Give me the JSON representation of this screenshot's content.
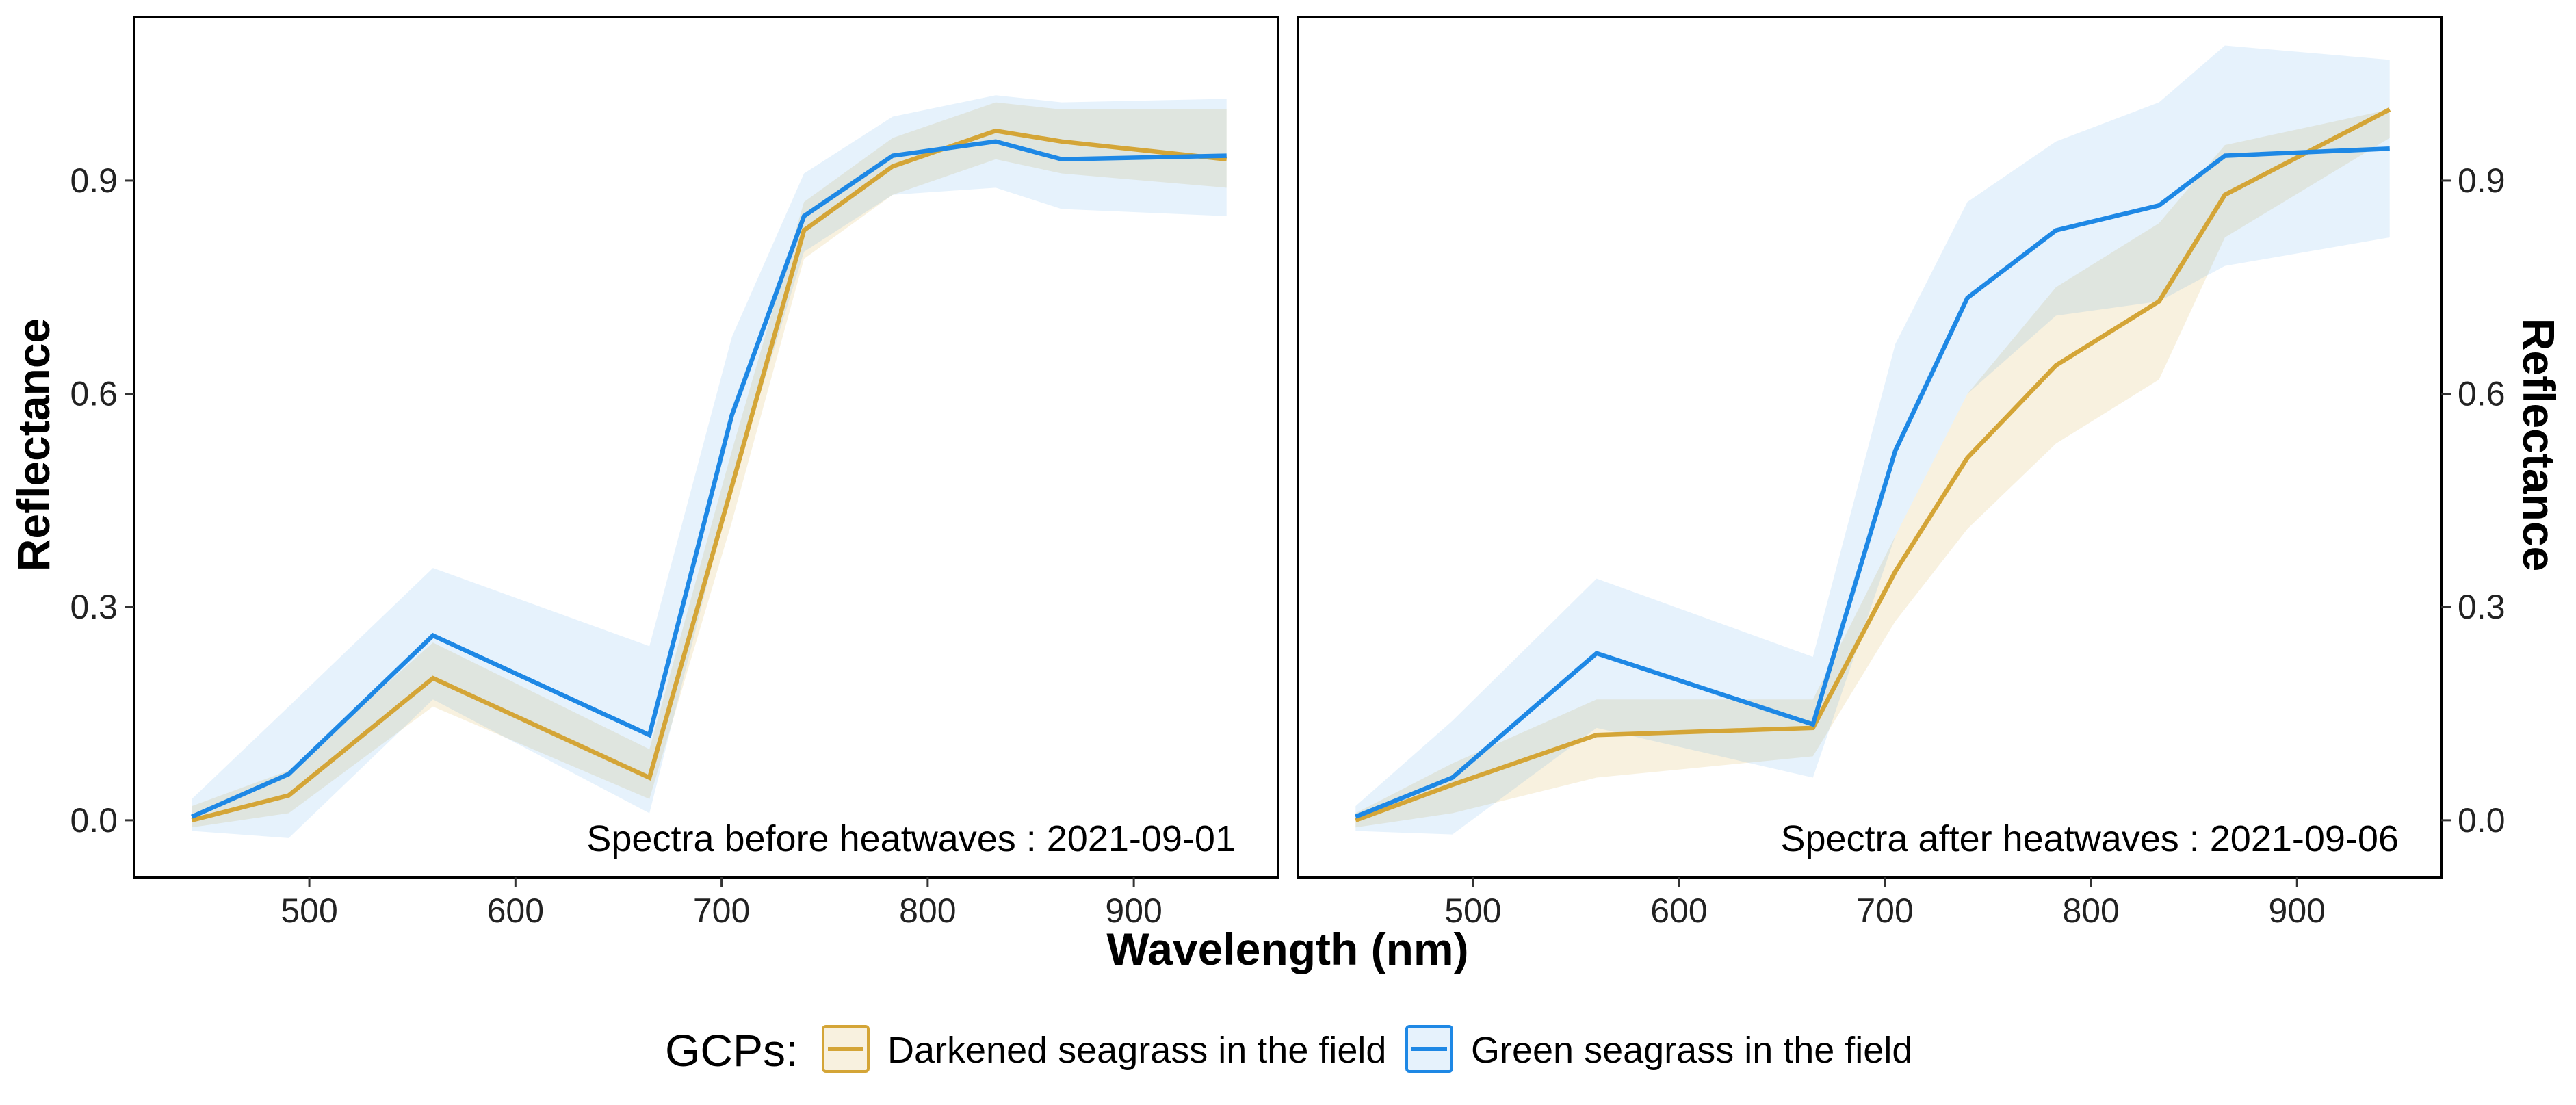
{
  "chart_data": [
    {
      "type": "line",
      "panel_label": "Spectra before heatwaves : 2021-09-01",
      "xlabel": "Wavelength (nm)",
      "ylabel": "Reflectance",
      "x_ticks": [
        500,
        600,
        700,
        800,
        900
      ],
      "y_ticks": [
        "0.0",
        "0.3",
        "0.6",
        "0.9"
      ],
      "y_tick_values": [
        0,
        0.3,
        0.6,
        0.9
      ],
      "xlim": [
        415,
        970
      ],
      "ylim": [
        -0.08,
        1.13
      ],
      "y_axis_side": "left",
      "x": [
        443,
        490,
        560,
        665,
        705,
        740,
        783,
        833,
        865,
        945
      ],
      "series": [
        {
          "name": "Darkened seagrass in the field",
          "color": "#D4A537",
          "values": [
            0.0,
            0.035,
            0.2,
            0.06,
            0.47,
            0.83,
            0.92,
            0.97,
            0.955,
            0.93
          ],
          "lower": [
            -0.01,
            0.01,
            0.16,
            0.03,
            0.42,
            0.79,
            0.88,
            0.93,
            0.91,
            0.89
          ],
          "upper": [
            0.02,
            0.07,
            0.25,
            0.1,
            0.52,
            0.87,
            0.96,
            1.01,
            1.0,
            1.0
          ]
        },
        {
          "name": "Green seagrass in the field",
          "color": "#1E88E5",
          "values": [
            0.005,
            0.065,
            0.26,
            0.12,
            0.57,
            0.85,
            0.935,
            0.955,
            0.93,
            0.935
          ],
          "lower": [
            -0.015,
            -0.025,
            0.17,
            0.01,
            0.47,
            0.8,
            0.88,
            0.89,
            0.86,
            0.85
          ],
          "upper": [
            0.03,
            0.16,
            0.355,
            0.245,
            0.68,
            0.91,
            0.99,
            1.02,
            1.01,
            1.015
          ]
        }
      ]
    },
    {
      "type": "line",
      "panel_label": "Spectra after heatwaves : 2021-09-06",
      "xlabel": "Wavelength (nm)",
      "ylabel": "Reflectance",
      "x_ticks": [
        500,
        600,
        700,
        800,
        900
      ],
      "y_ticks": [
        "0.0",
        "0.3",
        "0.6",
        "0.9"
      ],
      "y_tick_values": [
        0,
        0.3,
        0.6,
        0.9
      ],
      "xlim": [
        415,
        970
      ],
      "ylim": [
        -0.08,
        1.13
      ],
      "y_axis_side": "right",
      "x": [
        443,
        490,
        560,
        665,
        705,
        740,
        783,
        833,
        865,
        945
      ],
      "series": [
        {
          "name": "Darkened seagrass in the field",
          "color": "#D4A537",
          "values": [
            0.0,
            0.05,
            0.12,
            0.13,
            0.35,
            0.51,
            0.64,
            0.73,
            0.88,
            1.0
          ],
          "lower": [
            -0.01,
            0.01,
            0.06,
            0.09,
            0.28,
            0.41,
            0.53,
            0.62,
            0.82,
            0.96
          ],
          "upper": [
            0.01,
            0.08,
            0.17,
            0.17,
            0.4,
            0.6,
            0.75,
            0.84,
            0.95,
            1.0
          ]
        },
        {
          "name": "Green seagrass in the field",
          "color": "#1E88E5",
          "values": [
            0.005,
            0.06,
            0.235,
            0.135,
            0.52,
            0.735,
            0.83,
            0.865,
            0.935,
            0.945
          ],
          "lower": [
            -0.015,
            -0.02,
            0.13,
            0.06,
            0.4,
            0.6,
            0.71,
            0.73,
            0.78,
            0.82
          ],
          "upper": [
            0.02,
            0.14,
            0.34,
            0.23,
            0.67,
            0.87,
            0.955,
            1.01,
            1.09,
            1.07
          ]
        }
      ]
    }
  ],
  "legend": {
    "title": "GCPs:",
    "placement": "bottom",
    "items": [
      {
        "label": "Darkened seagrass in the field",
        "color": "#D4A537"
      },
      {
        "label": "Green seagrass in the field",
        "color": "#1E88E5"
      }
    ]
  }
}
